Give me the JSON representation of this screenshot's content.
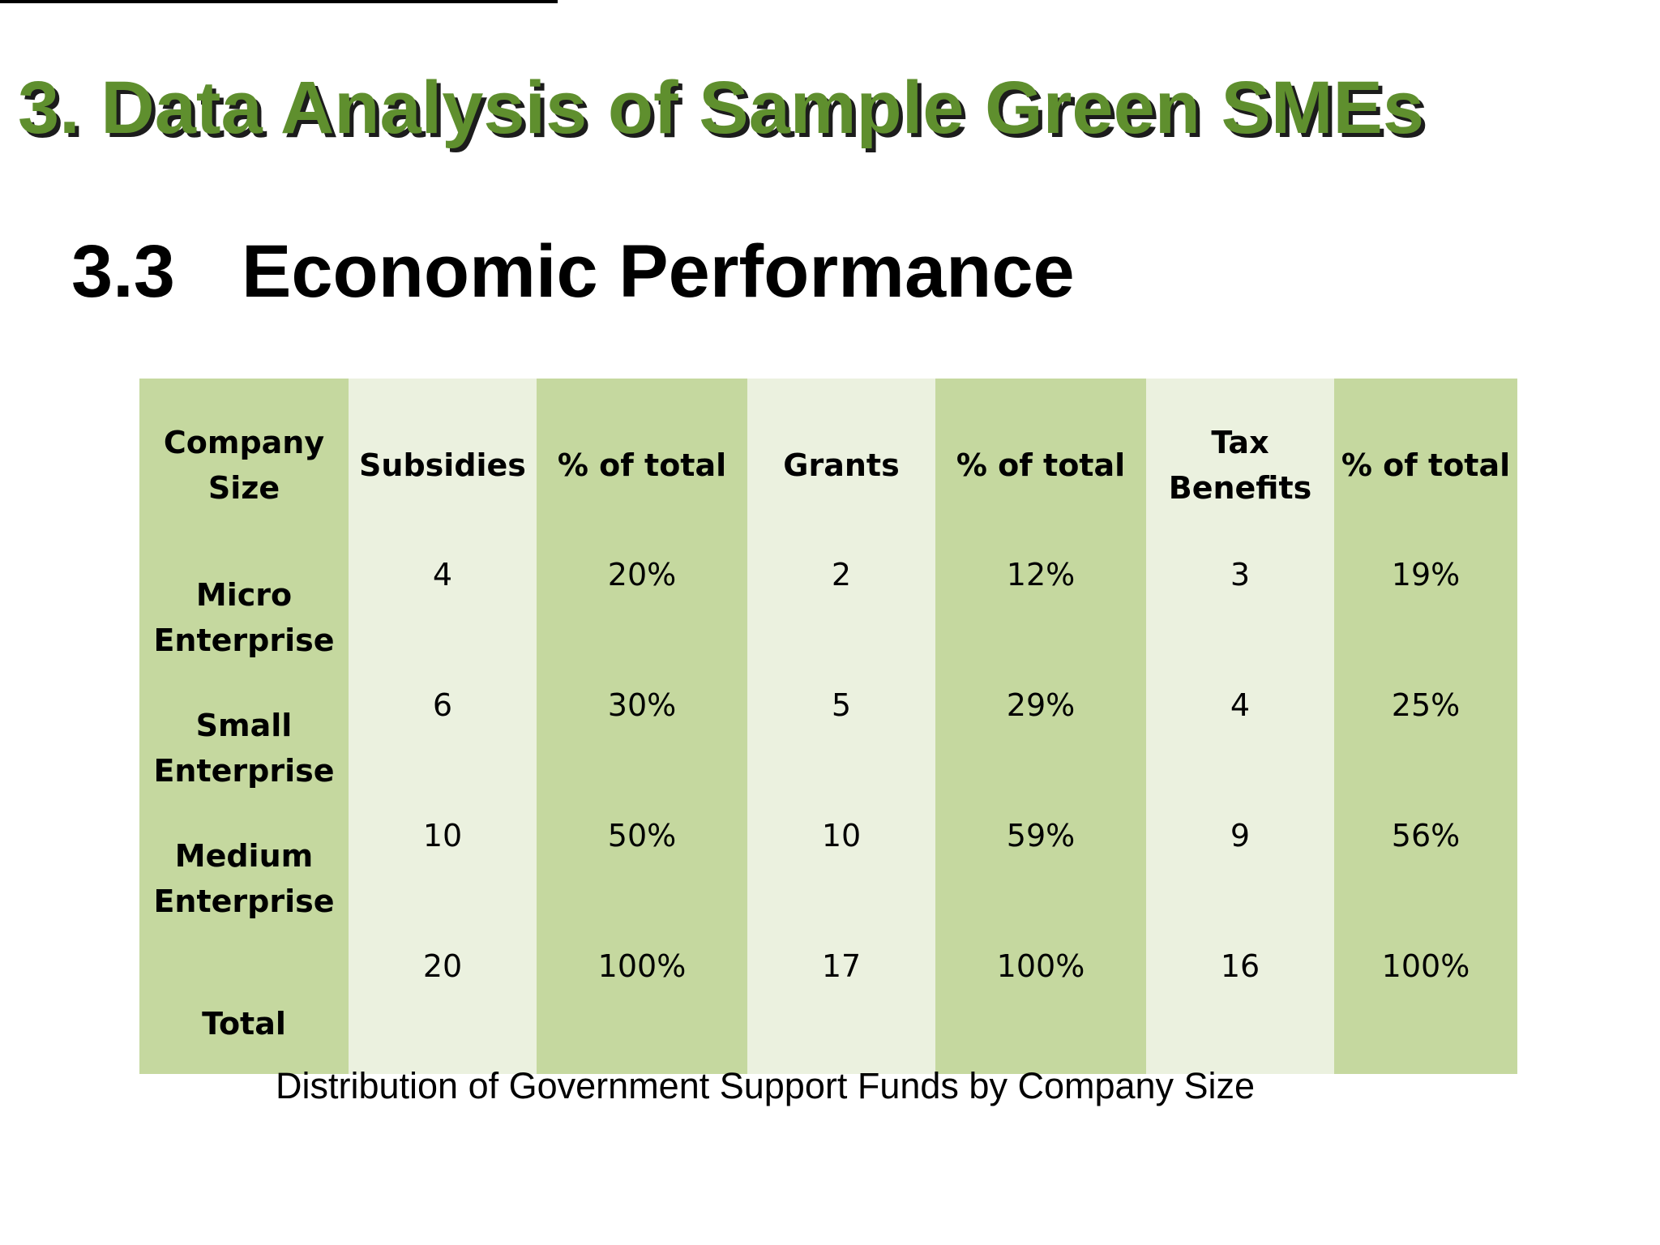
{
  "slide": {
    "title": "3. Data Analysis of Sample Green SMEs",
    "section_number": "3.3",
    "section_title": "Economic Performance",
    "caption": "Distribution of Government Support Funds by Company Size",
    "colors": {
      "title_green": "#5f8f2e",
      "column_dark": "#c5d89f",
      "column_light": "#ebf1df"
    }
  },
  "table": {
    "headers": [
      "Company Size",
      "Subsidies",
      "% of total",
      "Grants",
      "% of total",
      "Tax Benefits",
      "% of total"
    ],
    "rows": [
      {
        "label": "Micro Enterprise",
        "cells": [
          "4",
          "20%",
          "2",
          "12%",
          "3",
          "19%"
        ]
      },
      {
        "label": "Small Enterprise",
        "cells": [
          "6",
          "30%",
          "5",
          "29%",
          "4",
          "25%"
        ]
      },
      {
        "label": "Medium Enterprise",
        "cells": [
          "10",
          "50%",
          "10",
          "59%",
          "9",
          "56%"
        ]
      },
      {
        "label": "Total",
        "cells": [
          "20",
          "100%",
          "17",
          "100%",
          "16",
          "100%"
        ]
      }
    ]
  }
}
